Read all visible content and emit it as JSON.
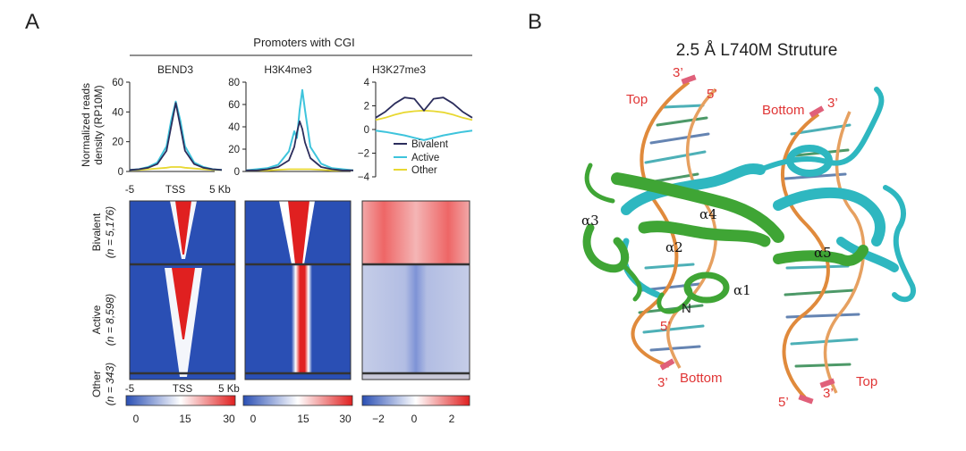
{
  "panel_a": {
    "letter": "A",
    "section_title": "Promoters with CGI",
    "y_axis_label_line1": "Normalized reads",
    "y_axis_label_line2": "density (RP10M)",
    "x_axis": {
      "left": "-5",
      "center": "TSS",
      "right": "5 Kb"
    },
    "heatmap_x_axis": {
      "left": "-5",
      "center": "TSS",
      "right": "5 Kb"
    },
    "row_groups": [
      {
        "name": "Bivalent",
        "n": "(n = 5,176)"
      },
      {
        "name": "Active",
        "n": "(n = 8,598)"
      },
      {
        "name": "Other",
        "n": "(n = 343)"
      }
    ],
    "legend": [
      "Bivalent",
      "Active",
      "Other"
    ],
    "series_colors": {
      "Bivalent": "#2b2d5c",
      "Active": "#3ec4dc",
      "Other": "#e8d832"
    },
    "heatmap_colors": {
      "low": "#2a4fb4",
      "mid": "#ffffff",
      "high": "#e02020"
    },
    "colorbars": [
      {
        "ticks": [
          "0",
          "15",
          "30"
        ]
      },
      {
        "ticks": [
          "0",
          "15",
          "30"
        ]
      },
      {
        "ticks": [
          "−2",
          "0",
          "2"
        ]
      }
    ]
  },
  "chart_data": [
    {
      "type": "line",
      "title": "BEND3",
      "ylim": [
        0,
        60
      ],
      "yticks": [
        "0",
        "20",
        "40",
        "60"
      ],
      "x": [
        -5,
        -4,
        -3,
        -2,
        -1,
        -0.5,
        0,
        0.5,
        1,
        2,
        3,
        4,
        5
      ],
      "series": [
        {
          "name": "Bivalent",
          "values": [
            1,
            1.5,
            2.5,
            5,
            14,
            30,
            46,
            30,
            14,
            5,
            2.5,
            1.5,
            1
          ]
        },
        {
          "name": "Active",
          "values": [
            1,
            1.5,
            3,
            6,
            17,
            34,
            47,
            34,
            17,
            6,
            3,
            1.5,
            1
          ]
        },
        {
          "name": "Other",
          "values": [
            1,
            1,
            1.5,
            2,
            2.5,
            3,
            3,
            3,
            2.5,
            2,
            1.5,
            1,
            1
          ]
        }
      ]
    },
    {
      "type": "line",
      "title": "H3K4me3",
      "ylim": [
        0,
        80
      ],
      "yticks": [
        "0",
        "20",
        "40",
        "60",
        "80"
      ],
      "x": [
        -5,
        -4,
        -3,
        -2,
        -1,
        -0.5,
        -0.25,
        0,
        0.25,
        0.5,
        1,
        2,
        3,
        4,
        5
      ],
      "series": [
        {
          "name": "Bivalent",
          "values": [
            1,
            1,
            2,
            4,
            10,
            22,
            35,
            45,
            38,
            26,
            12,
            4,
            2,
            1,
            1
          ]
        },
        {
          "name": "Active",
          "values": [
            1,
            2,
            3,
            6,
            18,
            36,
            30,
            55,
            73,
            55,
            22,
            7,
            3,
            2,
            1
          ]
        },
        {
          "name": "Other",
          "values": [
            1,
            1,
            1,
            1.5,
            2,
            2,
            2,
            2,
            2,
            2,
            2,
            1.5,
            1,
            1,
            1
          ]
        }
      ]
    },
    {
      "type": "line",
      "title": "H3K27me3",
      "ylim": [
        -4,
        4
      ],
      "yticks": [
        "4",
        "2",
        "0",
        "−2",
        "−4"
      ],
      "x": [
        -5,
        -4,
        -3,
        -2,
        -1,
        0,
        1,
        2,
        3,
        4,
        5
      ],
      "series": [
        {
          "name": "Bivalent",
          "values": [
            1.0,
            1.5,
            2.2,
            2.7,
            2.6,
            1.6,
            2.6,
            2.7,
            2.2,
            1.5,
            1.0
          ]
        },
        {
          "name": "Active",
          "values": [
            -0.1,
            -0.2,
            -0.35,
            -0.5,
            -0.7,
            -0.9,
            -0.7,
            -0.5,
            -0.35,
            -0.2,
            -0.1
          ]
        },
        {
          "name": "Other",
          "values": [
            0.8,
            1.0,
            1.25,
            1.45,
            1.55,
            1.6,
            1.55,
            1.45,
            1.25,
            1.0,
            0.8
          ]
        }
      ]
    }
  ],
  "panel_b": {
    "letter": "B",
    "title": "2.5 Å L740M Struture",
    "colors": {
      "chain_green": "#3fa535",
      "chain_cyan": "#2eb7c0",
      "dna_backbone": "#e08a3c",
      "label_red": "#e03535"
    },
    "labels": {
      "top_left": "Top",
      "three_prime_1": "3’",
      "five_prime_1": "5’",
      "bottom_right": "Bottom",
      "three_prime_2": "3’",
      "alpha3": "α3",
      "alpha4": "α4",
      "alpha2": "α2",
      "alpha5": "α5",
      "alpha1": "α1",
      "n_term": "N",
      "five_prime_3": "5’",
      "three_prime_3": "3’",
      "bottom_left": "Bottom",
      "five_prime_4": "5’",
      "three_prime_4": "3’",
      "top_right": "Top"
    }
  }
}
